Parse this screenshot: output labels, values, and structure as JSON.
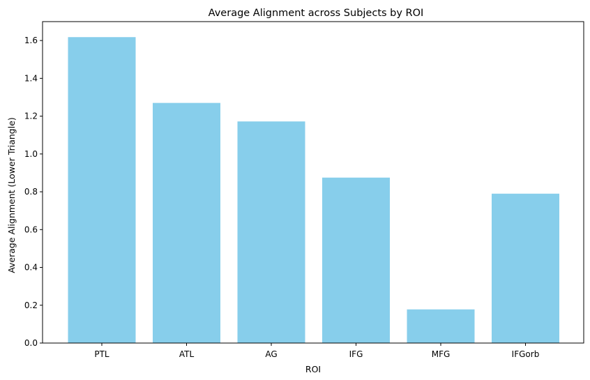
{
  "chart_data": {
    "type": "bar",
    "title": "Average Alignment across Subjects by ROI",
    "xlabel": "ROI",
    "ylabel": "Average Alignment (Lower Triangle)",
    "categories": [
      "PTL",
      "ATL",
      "AG",
      "IFG",
      "MFG",
      "IFGorb"
    ],
    "values": [
      1.618,
      1.27,
      1.172,
      0.875,
      0.178,
      0.79
    ],
    "ylim": [
      0,
      1.7
    ],
    "yticks": [
      "0.0",
      "0.2",
      "0.4",
      "0.6",
      "0.8",
      "1.0",
      "1.2",
      "1.4",
      "1.6"
    ],
    "grid": false,
    "bar_color": "#87ceeb"
  }
}
